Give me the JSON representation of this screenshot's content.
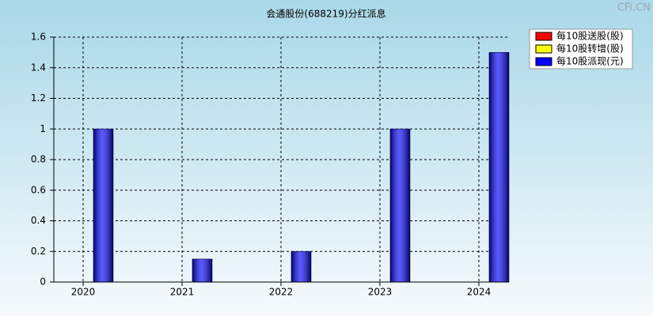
{
  "chart_data": {
    "type": "bar",
    "title": "会通股份(688219)分红派息",
    "watermark": "CFi.CN",
    "categories": [
      "2020",
      "2021",
      "2022",
      "2023",
      "2024"
    ],
    "series": [
      {
        "name": "每10股送股(股)",
        "color": "#ff0000",
        "values": [
          0,
          0,
          0,
          0,
          0
        ]
      },
      {
        "name": "每10股转增(股)",
        "color": "#ffff00",
        "values": [
          0,
          0,
          0,
          0,
          0
        ]
      },
      {
        "name": "每10股派现(元)",
        "color": "#0000ff",
        "values": [
          1,
          0.15,
          0.2,
          1,
          1.5
        ]
      }
    ],
    "ylim": [
      0,
      1.6
    ],
    "yticks": [
      0,
      0.2,
      0.4,
      0.6,
      0.8,
      1,
      1.2,
      1.4,
      1.6
    ],
    "grid": true,
    "legend": "top-right"
  }
}
